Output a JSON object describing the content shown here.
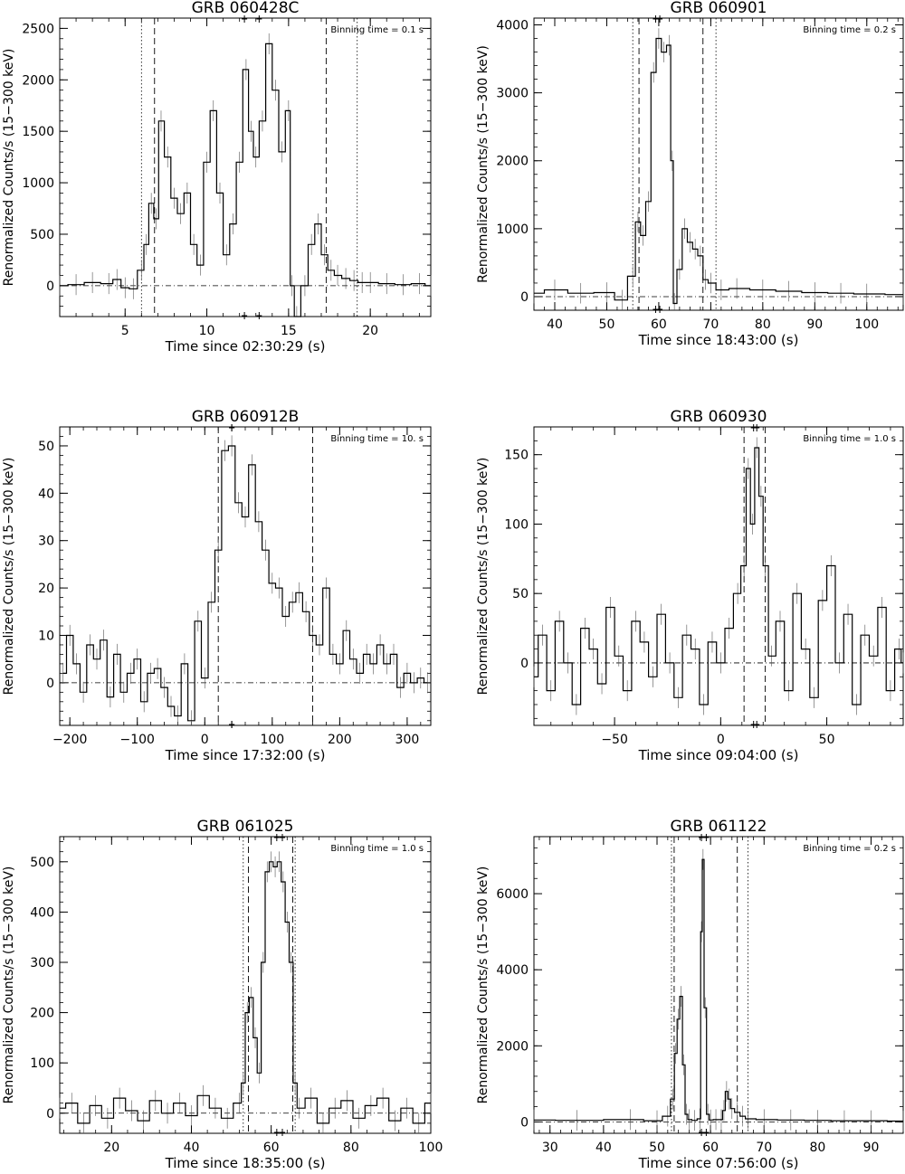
{
  "figure": {
    "ylabel": "Renormalized Counts/s (15−300 keV)"
  },
  "chart_data": [
    {
      "type": "line",
      "title": "GRB 060428C",
      "binning": "Binning time = 0.1 s",
      "xlabel": "Time since 02:30:29 (s)",
      "ylabel": "Renormalized Counts/s (15−300 keV)",
      "xlim": [
        1,
        23.7
      ],
      "ylim": [
        -300,
        2600
      ],
      "xticks": [
        5,
        10,
        15,
        20
      ],
      "yticks": [
        0,
        500,
        1000,
        1500,
        2000,
        2500
      ],
      "vlines_dotted": [
        6.0,
        19.2
      ],
      "vlines_dashed": [
        6.8,
        17.3
      ],
      "series": [
        {
          "x": [
            1,
            2,
            3,
            4,
            4.5,
            5,
            5.5,
            6,
            6.3,
            6.6,
            6.9,
            7.2,
            7.6,
            8,
            8.4,
            8.8,
            9.2,
            9.6,
            10,
            10.4,
            10.8,
            11.2,
            11.6,
            12,
            12.4,
            12.7,
            13,
            13.4,
            13.8,
            14.2,
            14.6,
            15,
            15.2,
            15.5,
            16,
            16.4,
            16.8,
            17.2,
            17.6,
            18,
            18.5,
            19,
            19.5,
            20,
            21,
            22,
            23,
            23.7
          ],
          "y": [
            0,
            10,
            30,
            20,
            60,
            -20,
            -30,
            150,
            400,
            800,
            650,
            1600,
            1250,
            850,
            700,
            900,
            400,
            200,
            1200,
            1700,
            900,
            300,
            600,
            1200,
            2100,
            1500,
            1250,
            1600,
            2350,
            1900,
            1300,
            1700,
            0,
            -300,
            0,
            400,
            600,
            300,
            150,
            100,
            70,
            50,
            30,
            30,
            20,
            10,
            20,
            0
          ]
        }
      ],
      "markers": [
        12.3,
        13.2
      ]
    },
    {
      "type": "line",
      "title": "GRB 060901",
      "binning": "Binning time = 0.2 s",
      "xlabel": "Time since 18:43:00 (s)",
      "ylabel": "Renormalized Counts/s (15−300 keV)",
      "xlim": [
        36,
        107
      ],
      "ylim": [
        -200,
        4100
      ],
      "xticks": [
        40,
        50,
        60,
        70,
        80,
        90,
        100
      ],
      "yticks": [
        0,
        1000,
        2000,
        3000,
        4000
      ],
      "vlines_dotted": [
        55.0,
        71.0
      ],
      "vlines_dashed": [
        56.2,
        68.5
      ],
      "series": [
        {
          "x": [
            36,
            40,
            45,
            50,
            53,
            55,
            56,
            57,
            58,
            59,
            60,
            61,
            62,
            62.6,
            63,
            64,
            65,
            66,
            67,
            68,
            69,
            70,
            72,
            75,
            80,
            85,
            90,
            95,
            100,
            107
          ],
          "y": [
            50,
            100,
            50,
            60,
            -50,
            300,
            1100,
            900,
            1400,
            3300,
            3800,
            3600,
            3700,
            2000,
            -100,
            400,
            1000,
            800,
            700,
            600,
            250,
            200,
            100,
            120,
            100,
            80,
            60,
            50,
            40,
            30
          ]
        }
      ],
      "markers": [
        59.4,
        60.2
      ]
    },
    {
      "type": "line",
      "title": "GRB 060912B",
      "binning": "Binning time = 10. s",
      "xlabel": "Time since 17:32:00 (s)",
      "ylabel": "Renormalized Counts/s (15−300 keV)",
      "xlim": [
        -215,
        335
      ],
      "ylim": [
        -9,
        54
      ],
      "xticks": [
        -200,
        -100,
        0,
        100,
        200,
        300
      ],
      "yticks": [
        0,
        10,
        20,
        30,
        40,
        50
      ],
      "vlines_dotted": [],
      "vlines_dashed": [
        20,
        160
      ],
      "series": [
        {
          "x": [
            -210,
            -200,
            -190,
            -180,
            -170,
            -160,
            -150,
            -140,
            -130,
            -120,
            -110,
            -100,
            -90,
            -80,
            -70,
            -60,
            -50,
            -40,
            -30,
            -20,
            -10,
            0,
            10,
            20,
            30,
            40,
            50,
            60,
            70,
            80,
            90,
            100,
            110,
            120,
            130,
            140,
            150,
            160,
            170,
            180,
            190,
            200,
            210,
            220,
            230,
            240,
            250,
            260,
            270,
            280,
            290,
            300,
            310,
            320,
            330
          ],
          "y": [
            2,
            10,
            4,
            -2,
            8,
            5,
            9,
            -3,
            6,
            -2,
            2,
            5,
            -4,
            2,
            3,
            -1,
            -5,
            -7,
            4,
            -8,
            13,
            1,
            17,
            28,
            49,
            50,
            38,
            35,
            46,
            34,
            28,
            21,
            20,
            14,
            17,
            19,
            15,
            10,
            8,
            20,
            6,
            4,
            11,
            5,
            2,
            6,
            4,
            8,
            4,
            6,
            -1,
            2,
            0,
            1,
            0
          ]
        }
      ],
      "markers": [
        40,
        40
      ]
    },
    {
      "type": "line",
      "title": "GRB 060930",
      "binning": "Binning time = 1.0 s",
      "xlabel": "Time since 09:04:00 (s)",
      "ylabel": "Renormalized Counts/s (15−300 keV)",
      "xlim": [
        -88,
        86
      ],
      "ylim": [
        -45,
        170
      ],
      "xticks": [
        -50,
        0,
        50
      ],
      "yticks": [
        0,
        50,
        100,
        150
      ],
      "vlines_dotted": [],
      "vlines_dashed": [
        11,
        21
      ],
      "series": [
        {
          "x": [
            -88,
            -84,
            -80,
            -76,
            -72,
            -68,
            -64,
            -60,
            -56,
            -52,
            -48,
            -44,
            -40,
            -36,
            -32,
            -28,
            -24,
            -20,
            -16,
            -12,
            -8,
            -4,
            0,
            4,
            8,
            11,
            13,
            15,
            17,
            19,
            21,
            24,
            28,
            32,
            36,
            40,
            44,
            48,
            52,
            56,
            60,
            64,
            68,
            72,
            76,
            80,
            84,
            86
          ],
          "y": [
            -10,
            20,
            -20,
            30,
            0,
            -30,
            25,
            10,
            -15,
            40,
            5,
            -20,
            30,
            15,
            -10,
            35,
            0,
            -25,
            20,
            10,
            -30,
            15,
            0,
            25,
            50,
            70,
            140,
            100,
            155,
            120,
            70,
            5,
            30,
            -20,
            50,
            10,
            -25,
            45,
            70,
            0,
            35,
            -30,
            20,
            5,
            40,
            -20,
            10,
            0
          ]
        }
      ],
      "markers": [
        15.5,
        17
      ]
    },
    {
      "type": "line",
      "title": "GRB 061025",
      "binning": "Binning time = 1.0 s",
      "xlabel": "Time since 18:35:00 (s)",
      "ylabel": "Renormalized Counts/s (15−300 keV)",
      "xlim": [
        7,
        100
      ],
      "ylim": [
        -40,
        550
      ],
      "xticks": [
        20,
        40,
        60,
        80,
        100
      ],
      "yticks": [
        0,
        100,
        200,
        300,
        400,
        500
      ],
      "vlines_dotted": [
        53,
        66
      ],
      "vlines_dashed": [
        54.3,
        65.4
      ],
      "series": [
        {
          "x": [
            7,
            10,
            13,
            16,
            19,
            22,
            25,
            28,
            31,
            34,
            37,
            40,
            43,
            46,
            49,
            52,
            53,
            54,
            55,
            56,
            57,
            58,
            59,
            60,
            61,
            62,
            63,
            64,
            65,
            66,
            67,
            70,
            73,
            76,
            79,
            82,
            85,
            88,
            91,
            94,
            97,
            100
          ],
          "y": [
            10,
            20,
            -20,
            15,
            -10,
            30,
            5,
            -15,
            25,
            0,
            20,
            -5,
            35,
            10,
            -10,
            20,
            60,
            200,
            230,
            150,
            80,
            300,
            480,
            500,
            490,
            500,
            460,
            380,
            300,
            60,
            10,
            30,
            -20,
            10,
            25,
            -10,
            15,
            30,
            -15,
            10,
            -20,
            20
          ]
        }
      ],
      "markers": [
        61.4,
        62.8
      ]
    },
    {
      "type": "line",
      "title": "GRB 061122",
      "binning": "Binning time = 0.2 s",
      "xlabel": "Time since 07:56:00 (s)",
      "ylabel": "Renormalized Counts/s (15−300 keV)",
      "xlim": [
        27,
        96
      ],
      "ylim": [
        -300,
        7500
      ],
      "xticks": [
        30,
        40,
        50,
        60,
        70,
        80,
        90
      ],
      "yticks": [
        0,
        2000,
        4000,
        6000
      ],
      "vlines_dotted": [
        52.7,
        67.0
      ],
      "vlines_dashed": [
        53.2,
        65.0
      ],
      "series": [
        {
          "x": [
            27,
            35,
            45,
            50,
            52,
            53,
            53.5,
            54,
            54.5,
            55,
            55.5,
            56,
            57,
            58,
            58.3,
            58.6,
            59,
            59.5,
            60,
            61,
            62,
            62.5,
            63,
            63.5,
            64,
            65,
            66,
            67,
            70,
            75,
            80,
            85,
            90,
            96
          ],
          "y": [
            50,
            40,
            60,
            30,
            150,
            600,
            1800,
            2700,
            3300,
            1500,
            200,
            60,
            40,
            80,
            5000,
            6900,
            3000,
            200,
            50,
            60,
            60,
            300,
            800,
            600,
            350,
            250,
            150,
            80,
            60,
            50,
            40,
            30,
            30,
            20
          ]
        }
      ],
      "markers": [
        58.3,
        59.2
      ]
    }
  ]
}
